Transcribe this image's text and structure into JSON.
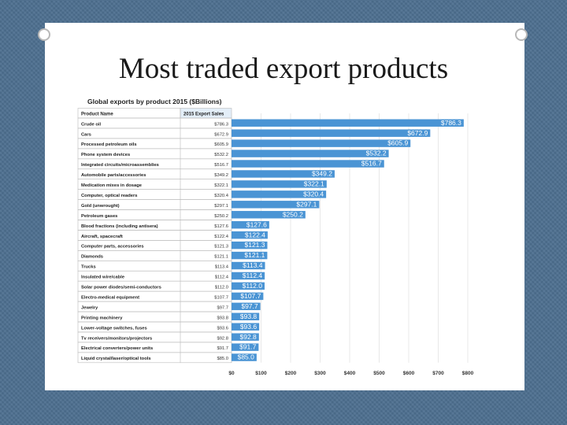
{
  "slide": {
    "title": "Most traded export products"
  },
  "chart_data": {
    "type": "bar",
    "orientation": "horizontal",
    "title": "Global exports by product 2015 ($Billions)",
    "table_headers": {
      "product": "Product Name",
      "sales": "2015 Export Sales"
    },
    "categories": [
      "Crude oil",
      "Cars",
      "Processed petroleum oils",
      "Phone system devices",
      "Integrated circuits/microassemblies",
      "Automobile parts/accessories",
      "Medication mixes in dosage",
      "Computer, optical readers",
      "Gold (unwrought)",
      "Petroleum gases",
      "Blood fractions (including antisera)",
      "Aircraft, spacecraft",
      "Computer parts, accessories",
      "Diamonds",
      "Trucks",
      "Insulated wire/cable",
      "Solar power diodes/semi-conductors",
      "Electro-medical equipment",
      "Jewelry",
      "Printing machinery",
      "Lower-voltage switches, fuses",
      "Tv receivers/monitors/projectors",
      "Electrical converters/power units",
      "Liquid crystal/laser/optical tools"
    ],
    "values": [
      786.3,
      672.9,
      605.9,
      532.2,
      516.7,
      349.2,
      322.1,
      320.4,
      297.1,
      250.2,
      127.6,
      122.4,
      121.3,
      121.1,
      113.4,
      112.4,
      112.0,
      107.7,
      97.7,
      93.8,
      93.6,
      92.8,
      91.7,
      85.0
    ],
    "table_values": [
      "$786.3",
      "$672.9",
      "$605.9",
      "$532.2",
      "$516.7",
      "$349.2",
      "$322.1",
      "$320.4",
      "$297.1",
      "$250.2",
      "$127.6",
      "$122.4",
      "$121.3",
      "$121.1",
      "$113.4",
      "$112.4",
      "$112.0",
      "$107.7",
      "$97.7",
      "$93.8",
      "$93.6",
      "$92.8",
      "$91.7",
      "$85.0"
    ],
    "bar_labels": [
      "$786.3",
      "$672.9",
      "$605.9",
      "$532.2",
      "$516.7",
      "$349.2",
      "$322.1",
      "$320.4",
      "$297.1",
      "$250.2",
      "$127.6",
      "$122.4",
      "$121.3",
      "$121.1",
      "$113.4",
      "$112.4",
      "$112.0",
      "$107.7",
      "$97.7",
      "$93.8",
      "$93.6",
      "$92.8",
      "$91.7",
      "$85.0"
    ],
    "x_ticks": [
      0,
      100,
      200,
      300,
      400,
      500,
      600,
      700,
      800
    ],
    "x_tick_labels": [
      "$0",
      "$100",
      "$200",
      "$300",
      "$400",
      "$500",
      "$600",
      "$700",
      "$800"
    ],
    "xlim": [
      0,
      800
    ],
    "grid": true,
    "colors": {
      "bar": "#4a94d4",
      "header_fill": "#e3eef8",
      "grid": "#d9d9d9"
    }
  }
}
